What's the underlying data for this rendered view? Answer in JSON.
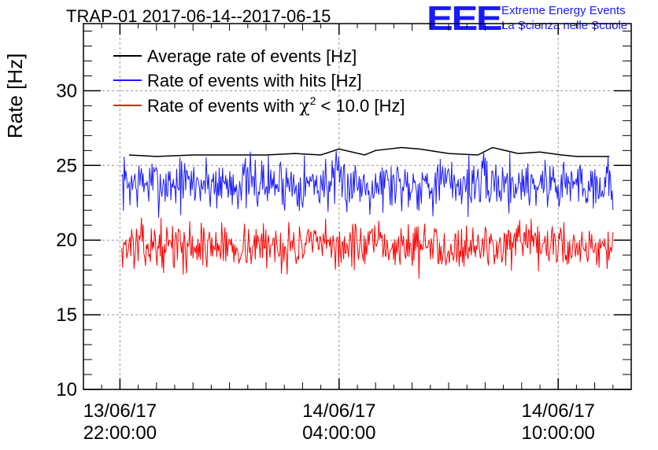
{
  "title": "TRAP-01 2017-06-14--2017-06-15",
  "logo": {
    "mark": "EEE",
    "line1": "Extreme Energy Events",
    "line2": "La Scienza nelle Scuole",
    "color": "#1a1aff"
  },
  "chart_data": {
    "type": "line",
    "title": "TRAP-01 2017-06-14--2017-06-15",
    "ylabel": "Rate [Hz]",
    "xlabel": "",
    "ylim": [
      10,
      34.5
    ],
    "xlim_hours_from_21": [
      0,
      15
    ],
    "grid": true,
    "legend_position": "top-left",
    "y_ticks": [
      "10",
      "15",
      "20",
      "25",
      "30"
    ],
    "x_ticks": [
      {
        "date": "13/06/17",
        "time": "22:00:00",
        "hour": 1
      },
      {
        "date": "14/06/17",
        "time": "04:00:00",
        "hour": 7
      },
      {
        "date": "14/06/17",
        "time": "10:00:00",
        "hour": 13
      }
    ],
    "series": [
      {
        "name": "Average rate of events [Hz]",
        "color": "#000000",
        "x": [
          1.25,
          2.0,
          3.0,
          4.0,
          5.0,
          5.8,
          6.5,
          7.0,
          7.7,
          8.0,
          8.7,
          9.2,
          10.0,
          10.8,
          11.2,
          11.9,
          12.5,
          13.1,
          13.5,
          14.1,
          14.4
        ],
        "values": [
          25.7,
          25.6,
          25.7,
          25.7,
          25.7,
          25.8,
          25.7,
          26.1,
          25.7,
          26.0,
          26.2,
          26.1,
          25.8,
          25.7,
          26.2,
          25.8,
          25.9,
          25.7,
          25.6,
          25.6,
          25.6
        ]
      },
      {
        "name": "Rate of events with hits [Hz]",
        "color": "#1a1aff",
        "x_start": 1.05,
        "x_end": 14.5,
        "mean": 23.8,
        "spread": 0.9,
        "seed": 7
      },
      {
        "name": "Rate of events with χ² < 10.0 [Hz]",
        "color": "#ff0000",
        "x_start": 1.05,
        "x_end": 14.5,
        "mean": 19.6,
        "spread": 0.75,
        "seed": 13
      }
    ],
    "legend_labels": {
      "s1": "Average rate of events [Hz]",
      "s2": "Rate of events with hits [Hz]",
      "s3_prefix": "Rate of events with ",
      "s3_chi": "χ",
      "s3_sup": "2",
      "s3_suffix": " < 10.0 [Hz]"
    }
  }
}
